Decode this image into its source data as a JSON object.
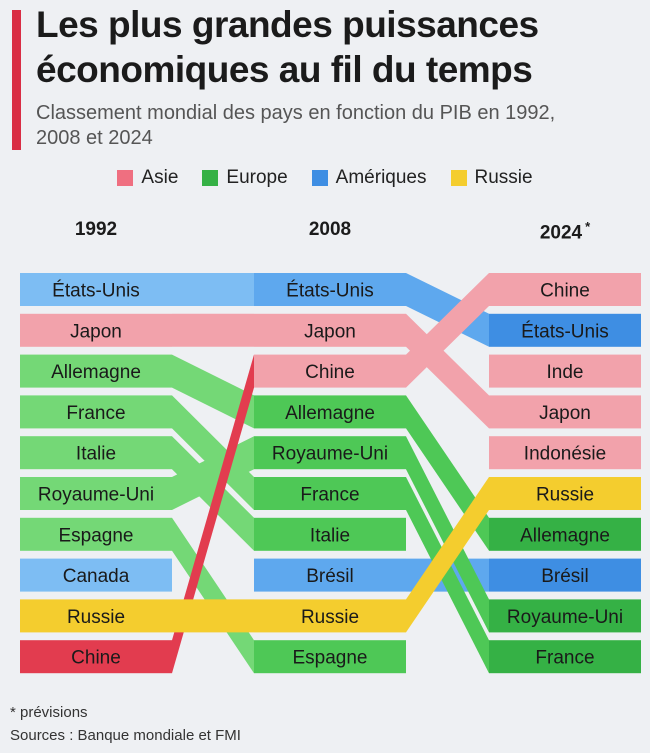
{
  "header": {
    "title": "Les plus grandes puissances économiques au fil du temps",
    "subtitle": "Classement mondial des pays en fonction du PIB en 1992, 2008 et 2024"
  },
  "legend": [
    {
      "label": "Asie",
      "key": "asie"
    },
    {
      "label": "Europe",
      "key": "europe"
    },
    {
      "label": "Amériques",
      "key": "ameriques"
    },
    {
      "label": "Russie",
      "key": "russie"
    }
  ],
  "colors": {
    "asie": {
      "1992": "#f2a2ab",
      "2008": "#f2a2ab",
      "2024": "#f2a2ab",
      "china1992": "#e23c4f"
    },
    "europe": {
      "1992": "#74d876",
      "2008": "#4ec856",
      "2024": "#35b145"
    },
    "ameriques": {
      "1992": "#7dbdf3",
      "2008": "#5ea8ee",
      "2024": "#3e8ee3"
    },
    "russie": "#f4cd2e"
  },
  "years": [
    {
      "label": "1992",
      "mark": ""
    },
    {
      "label": "2008",
      "mark": ""
    },
    {
      "label": "2024",
      "mark": "*"
    }
  ],
  "chart_data": {
    "type": "bump",
    "columns": [
      "1992",
      "2008",
      "2024"
    ],
    "rankings": {
      "1992": [
        "États-Unis",
        "Japon",
        "Allemagne",
        "France",
        "Italie",
        "Royaume-Uni",
        "Espagne",
        "Canada",
        "Russie",
        "Chine"
      ],
      "2008": [
        "États-Unis",
        "Japon",
        "Chine",
        "Allemagne",
        "Royaume-Uni",
        "France",
        "Italie",
        "Brésil",
        "Russie",
        "Espagne"
      ],
      "2024": [
        "Chine",
        "États-Unis",
        "Inde",
        "Japon",
        "Indonésie",
        "Russie",
        "Allemagne",
        "Brésil",
        "Royaume-Uni",
        "France"
      ]
    },
    "regions": {
      "États-Unis": "ameriques",
      "Canada": "ameriques",
      "Brésil": "ameriques",
      "Japon": "asie",
      "Chine": "asie",
      "Inde": "asie",
      "Indonésie": "asie",
      "Allemagne": "europe",
      "France": "europe",
      "Italie": "europe",
      "Royaume-Uni": "europe",
      "Espagne": "europe",
      "Russie": "russie"
    }
  },
  "footer": {
    "footnote": "* prévisions",
    "sources": "Sources : Banque mondiale et FMI"
  }
}
